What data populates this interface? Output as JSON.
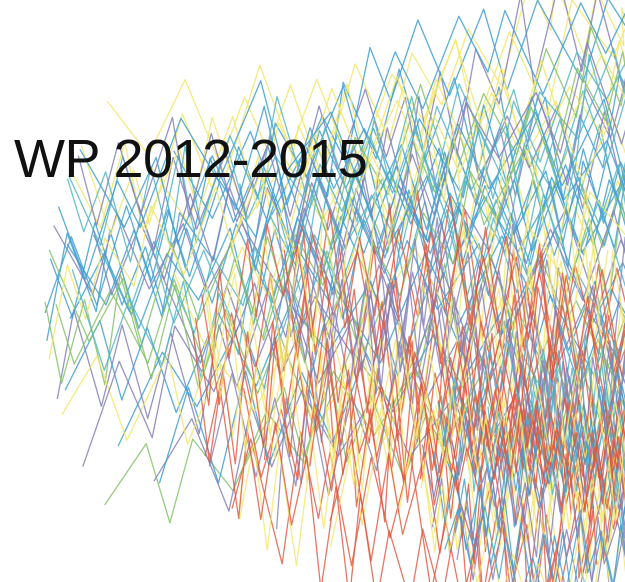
{
  "title": "WP 2012-2015",
  "palette": {
    "blue": "#3f9fd0",
    "purple": "#8580b8",
    "yellow": "#f2e66a",
    "red": "#e0553c",
    "teal": "#55b6c4",
    "green": "#86c26a",
    "title_text": "#111111"
  }
}
